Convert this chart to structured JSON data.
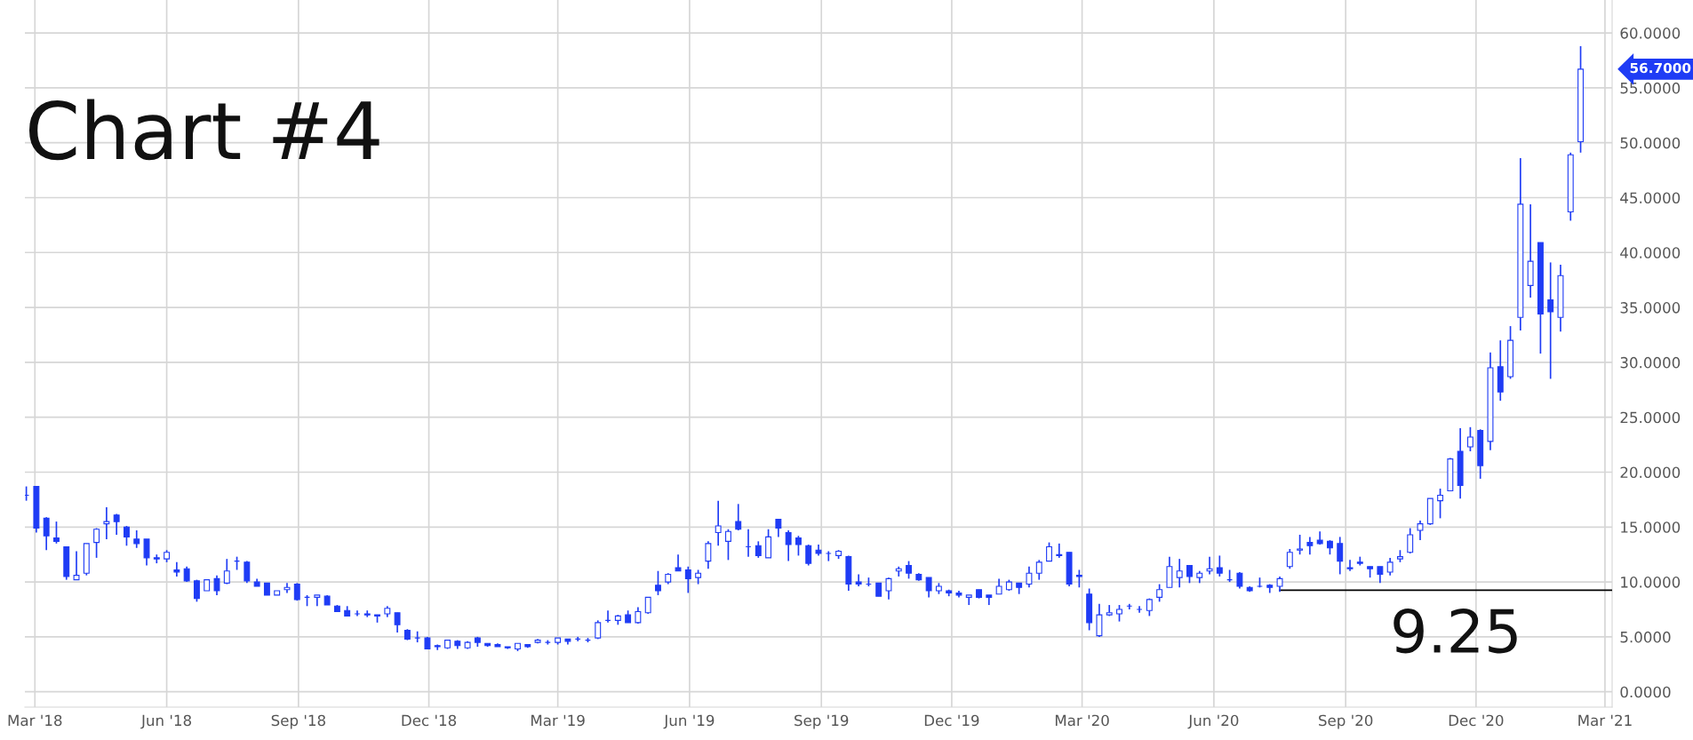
{
  "chart_data": {
    "type": "candlestick",
    "x": [
      "2018-02-23",
      "2018-03-02",
      "2018-03-09",
      "2018-03-16",
      "2018-03-23",
      "2018-03-30",
      "2018-04-06",
      "2018-04-13",
      "2018-04-20",
      "2018-04-27",
      "2018-05-04",
      "2018-05-11",
      "2018-05-18",
      "2018-05-25",
      "2018-06-01",
      "2018-06-08",
      "2018-06-15",
      "2018-06-22",
      "2018-06-29",
      "2018-07-06",
      "2018-07-13",
      "2018-07-20",
      "2018-07-27",
      "2018-08-03",
      "2018-08-10",
      "2018-08-17",
      "2018-08-24",
      "2018-08-31",
      "2018-09-07",
      "2018-09-14",
      "2018-09-21",
      "2018-09-28",
      "2018-10-05",
      "2018-10-12",
      "2018-10-19",
      "2018-10-26",
      "2018-11-02",
      "2018-11-09",
      "2018-11-16",
      "2018-11-23",
      "2018-11-30",
      "2018-12-07",
      "2018-12-14",
      "2018-12-21",
      "2018-12-28",
      "2019-01-04",
      "2019-01-11",
      "2019-01-18",
      "2019-01-25",
      "2019-02-01",
      "2019-02-08",
      "2019-02-15",
      "2019-02-22",
      "2019-03-01",
      "2019-03-08",
      "2019-03-15",
      "2019-03-22",
      "2019-03-29",
      "2019-04-05",
      "2019-04-12",
      "2019-04-19",
      "2019-04-26",
      "2019-05-03",
      "2019-05-10",
      "2019-05-17",
      "2019-05-24",
      "2019-05-31",
      "2019-06-07",
      "2019-06-14",
      "2019-06-21",
      "2019-06-28",
      "2019-07-05",
      "2019-07-12",
      "2019-07-19",
      "2019-07-26",
      "2019-08-02",
      "2019-08-09",
      "2019-08-16",
      "2019-08-23",
      "2019-08-30",
      "2019-09-06",
      "2019-09-13",
      "2019-09-20",
      "2019-09-27",
      "2019-10-04",
      "2019-10-11",
      "2019-10-18",
      "2019-10-25",
      "2019-11-01",
      "2019-11-08",
      "2019-11-15",
      "2019-11-22",
      "2019-11-29",
      "2019-12-06",
      "2019-12-13",
      "2019-12-20",
      "2019-12-27",
      "2020-01-03",
      "2020-01-10",
      "2020-01-17",
      "2020-01-24",
      "2020-01-31",
      "2020-02-07",
      "2020-02-14",
      "2020-02-21",
      "2020-02-28",
      "2020-03-06",
      "2020-03-13",
      "2020-03-20",
      "2020-03-27",
      "2020-04-03",
      "2020-04-10",
      "2020-04-17",
      "2020-04-24",
      "2020-05-01",
      "2020-05-08",
      "2020-05-15",
      "2020-05-22",
      "2020-05-29",
      "2020-06-05",
      "2020-06-12",
      "2020-06-19",
      "2020-06-26",
      "2020-07-03",
      "2020-07-10",
      "2020-07-17",
      "2020-07-24",
      "2020-07-31",
      "2020-08-07",
      "2020-08-14",
      "2020-08-21",
      "2020-08-28",
      "2020-09-04",
      "2020-09-11",
      "2020-09-18",
      "2020-09-25",
      "2020-10-02",
      "2020-10-09",
      "2020-10-16",
      "2020-10-23",
      "2020-10-30",
      "2020-11-06",
      "2020-11-13",
      "2020-11-20",
      "2020-11-27",
      "2020-12-04",
      "2020-12-11",
      "2020-12-18",
      "2020-12-25",
      "2021-01-01",
      "2021-01-08",
      "2021-01-15",
      "2021-01-22",
      "2021-01-29",
      "2021-02-05",
      "2021-02-12"
    ],
    "ohlc": [
      [
        17.9,
        18.7,
        17.4,
        17.9
      ],
      [
        18.7,
        18.7,
        14.5,
        14.9
      ],
      [
        15.8,
        15.9,
        12.9,
        14.2
      ],
      [
        14.0,
        15.5,
        13.5,
        13.7
      ],
      [
        13.2,
        13.2,
        10.2,
        10.5
      ],
      [
        10.2,
        12.8,
        10.2,
        10.6
      ],
      [
        10.8,
        13.5,
        10.6,
        13.5
      ],
      [
        13.6,
        14.9,
        12.2,
        14.8
      ],
      [
        15.3,
        16.8,
        13.9,
        15.5
      ],
      [
        16.1,
        16.2,
        14.3,
        15.5
      ],
      [
        15.0,
        15.1,
        13.3,
        14.1
      ],
      [
        13.9,
        14.7,
        13.1,
        13.5
      ],
      [
        13.9,
        13.9,
        11.5,
        12.2
      ],
      [
        12.2,
        12.5,
        11.7,
        12.1
      ],
      [
        12.1,
        12.9,
        11.8,
        12.7
      ],
      [
        11.1,
        11.8,
        10.5,
        10.9
      ],
      [
        11.2,
        11.4,
        10.0,
        10.1
      ],
      [
        10.1,
        10.2,
        8.2,
        8.5
      ],
      [
        9.2,
        10.2,
        9.2,
        10.2
      ],
      [
        10.3,
        10.6,
        8.8,
        9.2
      ],
      [
        9.9,
        12.1,
        9.8,
        11.0
      ],
      [
        11.9,
        12.3,
        11.1,
        11.9
      ],
      [
        11.8,
        11.9,
        9.9,
        10.1
      ],
      [
        10.0,
        10.3,
        9.6,
        9.6
      ],
      [
        9.9,
        9.9,
        8.8,
        8.8
      ],
      [
        8.8,
        9.2,
        8.8,
        9.2
      ],
      [
        9.3,
        9.9,
        9.0,
        9.5
      ],
      [
        9.8,
        9.9,
        8.3,
        8.4
      ],
      [
        8.6,
        8.8,
        7.8,
        8.6
      ],
      [
        8.6,
        8.8,
        7.8,
        8.8
      ],
      [
        8.7,
        8.8,
        7.9,
        7.9
      ],
      [
        7.8,
        7.9,
        7.3,
        7.3
      ],
      [
        7.4,
        7.8,
        6.9,
        6.9
      ],
      [
        7.1,
        7.4,
        6.9,
        7.1
      ],
      [
        7.1,
        7.4,
        6.8,
        7.0
      ],
      [
        6.9,
        7.0,
        6.3,
        7.0
      ],
      [
        7.1,
        7.8,
        6.8,
        7.6
      ],
      [
        7.2,
        7.2,
        5.4,
        6.1
      ],
      [
        5.6,
        5.7,
        4.7,
        4.8
      ],
      [
        4.9,
        5.5,
        4.5,
        4.9
      ],
      [
        4.9,
        5.0,
        3.9,
        3.9
      ],
      [
        4.2,
        4.3,
        3.8,
        4.1
      ],
      [
        4.0,
        4.7,
        3.9,
        4.7
      ],
      [
        4.6,
        4.7,
        3.9,
        4.2
      ],
      [
        4.0,
        4.6,
        3.9,
        4.5
      ],
      [
        4.9,
        5.0,
        4.1,
        4.5
      ],
      [
        4.4,
        4.4,
        4.1,
        4.2
      ],
      [
        4.3,
        4.4,
        4.1,
        4.1
      ],
      [
        4.1,
        4.1,
        3.9,
        4.0
      ],
      [
        3.9,
        4.4,
        3.7,
        4.4
      ],
      [
        4.3,
        4.3,
        4.0,
        4.1
      ],
      [
        4.5,
        4.8,
        4.4,
        4.7
      ],
      [
        4.5,
        4.7,
        4.3,
        4.5
      ],
      [
        4.5,
        4.9,
        4.3,
        4.9
      ],
      [
        4.8,
        4.8,
        4.3,
        4.6
      ],
      [
        4.8,
        5.0,
        4.6,
        4.8
      ],
      [
        4.7,
        4.9,
        4.5,
        4.7
      ],
      [
        4.9,
        6.5,
        4.8,
        6.3
      ],
      [
        6.5,
        7.4,
        6.3,
        6.5
      ],
      [
        6.5,
        7.0,
        6.1,
        6.9
      ],
      [
        7.0,
        7.4,
        6.3,
        6.3
      ],
      [
        6.3,
        7.7,
        6.2,
        7.3
      ],
      [
        7.2,
        8.6,
        7.1,
        8.6
      ],
      [
        9.7,
        11.0,
        8.8,
        9.2
      ],
      [
        10.0,
        10.8,
        9.8,
        10.7
      ],
      [
        11.3,
        12.5,
        11.0,
        11.0
      ],
      [
        11.1,
        11.4,
        9.0,
        10.3
      ],
      [
        10.4,
        11.1,
        9.8,
        10.8
      ],
      [
        11.9,
        13.7,
        11.2,
        13.5
      ],
      [
        14.5,
        17.4,
        13.3,
        15.1
      ],
      [
        13.7,
        14.8,
        12.0,
        14.6
      ],
      [
        15.5,
        17.1,
        14.7,
        14.8
      ],
      [
        13.2,
        14.8,
        12.3,
        13.2
      ],
      [
        13.3,
        13.7,
        12.2,
        12.4
      ],
      [
        12.2,
        14.8,
        12.2,
        14.1
      ],
      [
        15.7,
        15.7,
        14.1,
        14.9
      ],
      [
        14.5,
        14.7,
        11.9,
        13.4
      ],
      [
        14.0,
        14.2,
        12.4,
        13.4
      ],
      [
        13.3,
        13.4,
        11.5,
        11.7
      ],
      [
        12.9,
        13.4,
        12.4,
        12.6
      ],
      [
        12.6,
        12.8,
        11.9,
        12.6
      ],
      [
        12.4,
        12.9,
        12.1,
        12.8
      ],
      [
        12.3,
        12.4,
        9.2,
        9.8
      ],
      [
        10.0,
        10.7,
        9.6,
        9.8
      ],
      [
        9.8,
        10.4,
        9.6,
        9.8
      ],
      [
        9.9,
        9.9,
        8.7,
        8.7
      ],
      [
        9.2,
        10.4,
        8.4,
        10.3
      ],
      [
        11.0,
        11.4,
        10.5,
        11.2
      ],
      [
        11.5,
        11.9,
        10.3,
        10.8
      ],
      [
        10.7,
        10.8,
        10.1,
        10.2
      ],
      [
        10.4,
        10.4,
        8.6,
        9.2
      ],
      [
        9.2,
        9.9,
        8.9,
        9.6
      ],
      [
        9.2,
        9.3,
        8.7,
        9.0
      ],
      [
        9.0,
        9.2,
        8.6,
        8.8
      ],
      [
        8.6,
        8.8,
        7.9,
        8.8
      ],
      [
        9.3,
        9.3,
        8.5,
        8.6
      ],
      [
        8.8,
        8.8,
        7.9,
        8.6
      ],
      [
        8.9,
        10.3,
        8.9,
        9.6
      ],
      [
        9.3,
        10.2,
        9.2,
        10.0
      ],
      [
        9.9,
        9.9,
        8.9,
        9.5
      ],
      [
        9.8,
        11.4,
        9.5,
        10.8
      ],
      [
        10.8,
        12.0,
        10.2,
        11.8
      ],
      [
        11.9,
        13.6,
        11.9,
        13.2
      ],
      [
        12.4,
        13.5,
        12.2,
        12.5
      ],
      [
        12.7,
        12.7,
        9.6,
        9.8
      ],
      [
        10.5,
        11.1,
        9.5,
        10.6
      ],
      [
        8.9,
        9.4,
        5.6,
        6.3
      ],
      [
        5.1,
        8.0,
        5.0,
        7.0
      ],
      [
        7.0,
        7.9,
        6.9,
        7.2
      ],
      [
        7.1,
        7.9,
        6.4,
        7.5
      ],
      [
        7.8,
        8.0,
        7.5,
        7.8
      ],
      [
        7.5,
        7.8,
        7.2,
        7.5
      ],
      [
        7.4,
        8.5,
        6.9,
        8.4
      ],
      [
        8.6,
        9.8,
        8.2,
        9.3
      ],
      [
        9.5,
        12.3,
        9.5,
        11.4
      ],
      [
        10.4,
        12.1,
        9.5,
        11.0
      ],
      [
        11.5,
        11.5,
        9.9,
        10.5
      ],
      [
        10.4,
        11.0,
        9.9,
        10.8
      ],
      [
        11.0,
        12.3,
        10.7,
        11.2
      ],
      [
        11.3,
        12.4,
        10.5,
        10.8
      ],
      [
        10.2,
        11.1,
        10.0,
        10.2
      ],
      [
        10.8,
        10.9,
        9.4,
        9.6
      ],
      [
        9.5,
        9.6,
        9.1,
        9.2
      ],
      [
        9.6,
        10.4,
        9.5,
        9.6
      ],
      [
        9.7,
        9.8,
        9.0,
        9.5
      ],
      [
        9.6,
        10.5,
        9.1,
        10.3
      ],
      [
        11.4,
        13.0,
        11.2,
        12.7
      ],
      [
        12.9,
        14.3,
        12.5,
        13.0
      ],
      [
        13.6,
        14.1,
        12.5,
        13.3
      ],
      [
        13.8,
        14.6,
        13.4,
        13.5
      ],
      [
        13.7,
        13.8,
        12.5,
        13.1
      ],
      [
        13.5,
        14.1,
        10.7,
        11.9
      ],
      [
        11.3,
        12.0,
        11.0,
        11.2
      ],
      [
        11.8,
        12.3,
        11.5,
        11.7
      ],
      [
        11.4,
        11.4,
        10.4,
        11.2
      ],
      [
        11.4,
        11.4,
        9.9,
        10.7
      ],
      [
        10.9,
        12.2,
        10.6,
        11.8
      ],
      [
        12.1,
        12.9,
        11.8,
        12.3
      ],
      [
        12.7,
        14.9,
        12.6,
        14.3
      ],
      [
        14.7,
        15.6,
        13.8,
        15.3
      ],
      [
        15.3,
        17.6,
        15.2,
        17.6
      ],
      [
        17.4,
        18.5,
        15.8,
        17.9
      ],
      [
        18.3,
        21.3,
        18.3,
        21.2
      ],
      [
        21.9,
        24.0,
        17.6,
        18.8
      ],
      [
        22.3,
        24.1,
        21.9,
        23.2
      ],
      [
        23.8,
        23.9,
        19.4,
        20.6
      ],
      [
        22.8,
        30.9,
        22.0,
        29.5
      ],
      [
        29.6,
        32.0,
        26.5,
        27.3
      ],
      [
        28.7,
        33.3,
        28.5,
        32.0
      ],
      [
        34.1,
        48.6,
        32.9,
        44.4
      ],
      [
        37.0,
        44.4,
        35.9,
        39.2
      ],
      [
        40.9,
        40.9,
        30.8,
        34.4
      ],
      [
        35.7,
        39.1,
        28.5,
        34.6
      ],
      [
        34.1,
        38.9,
        32.8,
        37.9
      ],
      [
        43.7,
        49.1,
        42.9,
        48.9
      ],
      [
        50.1,
        58.8,
        49.1,
        56.7
      ]
    ],
    "color": "#1f3cf5",
    "series": [
      {
        "type": "line",
        "color": "#000000",
        "x": [
          "2020-07-17",
          "2021-03-06"
        ],
        "values": [
          9.25,
          9.25
        ]
      }
    ],
    "annotations": [
      "Chart #4",
      {
        "text": "9.25",
        "x": "2020-11-17",
        "y": 9.25
      },
      "56.7000"
    ],
    "xlim": [
      "2018-02-22",
      "2021-03-06"
    ],
    "xticks": [
      {
        "value": "2018-03-01",
        "label": "Mar '18"
      },
      {
        "value": "2018-06-01",
        "label": "Jun '18"
      },
      {
        "value": "2018-09-01",
        "label": "Sep '18"
      },
      {
        "value": "2018-12-01",
        "label": "Dec '18"
      },
      {
        "value": "2019-03-01",
        "label": "Mar '19"
      },
      {
        "value": "2019-06-01",
        "label": "Jun '19"
      },
      {
        "value": "2019-09-01",
        "label": "Sep '19"
      },
      {
        "value": "2019-12-01",
        "label": "Dec '19"
      },
      {
        "value": "2020-03-01",
        "label": "Mar '20"
      },
      {
        "value": "2020-06-01",
        "label": "Jun '20"
      },
      {
        "value": "2020-09-01",
        "label": "Sep '20"
      },
      {
        "value": "2020-12-01",
        "label": "Dec '20"
      },
      {
        "value": "2021-03-01",
        "label": "Mar '21"
      }
    ],
    "ylim": [
      -1.4,
      63
    ],
    "yticks": [
      {
        "value": 0,
        "label": "0.0000"
      },
      {
        "value": 5,
        "label": "5.0000"
      },
      {
        "value": 10,
        "label": "10.0000"
      },
      {
        "value": 15,
        "label": "15.0000"
      },
      {
        "value": 20,
        "label": "20.0000"
      },
      {
        "value": 25,
        "label": "25.0000"
      },
      {
        "value": 30,
        "label": "30.0000"
      },
      {
        "value": 35,
        "label": "35.0000"
      },
      {
        "value": 40,
        "label": "40.0000"
      },
      {
        "value": 45,
        "label": "45.0000"
      },
      {
        "value": 50,
        "label": "50.0000"
      },
      {
        "value": 55,
        "label": "55.0000"
      },
      {
        "value": 60,
        "label": "60.0000"
      }
    ],
    "grid": true
  }
}
